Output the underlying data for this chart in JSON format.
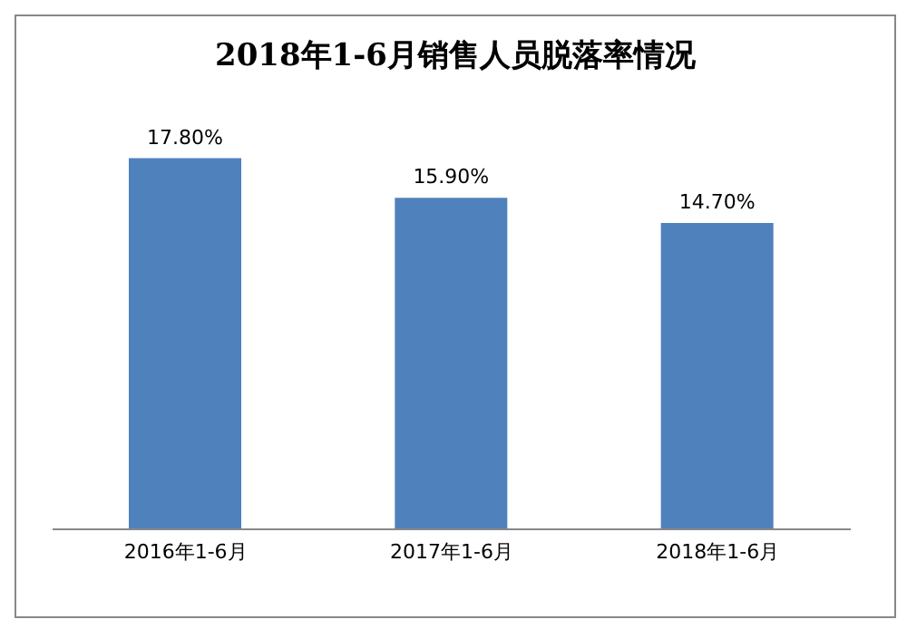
{
  "chart_data": {
    "type": "bar",
    "title": "2018年1-6月销售人员脱落率情况",
    "categories": [
      "2016年1-6月",
      "2017年1-6月",
      "2018年1-6月"
    ],
    "values": [
      17.8,
      15.9,
      14.7
    ],
    "value_labels": [
      "17.80%",
      "15.90%",
      "14.70%"
    ],
    "color": "#4f81bd"
  }
}
